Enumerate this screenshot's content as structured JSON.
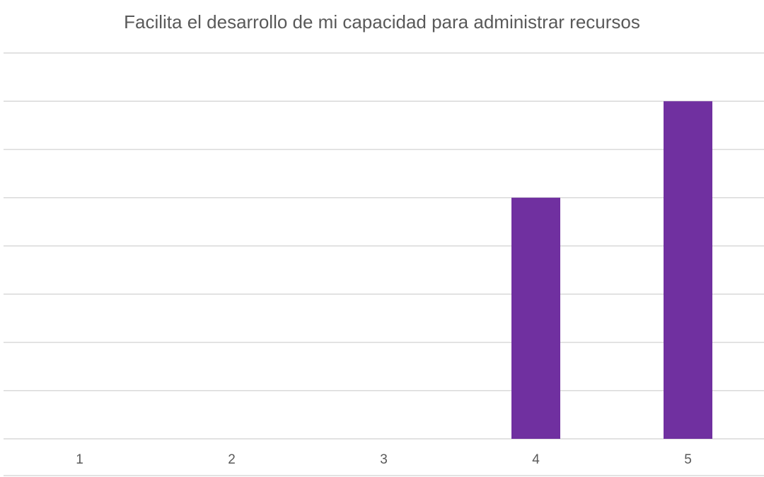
{
  "chart_data": {
    "type": "bar",
    "title": "Facilita el desarrollo de mi capacidad para administrar recursos",
    "categories": [
      "1",
      "2",
      "3",
      "4",
      "5"
    ],
    "values": [
      0,
      0,
      0,
      5,
      7
    ],
    "ylim": [
      0,
      8
    ],
    "grid": true,
    "legend": "none",
    "bar_color": "#7030a0",
    "grid_color": "#d9d9d9",
    "text_color": "#595959"
  }
}
